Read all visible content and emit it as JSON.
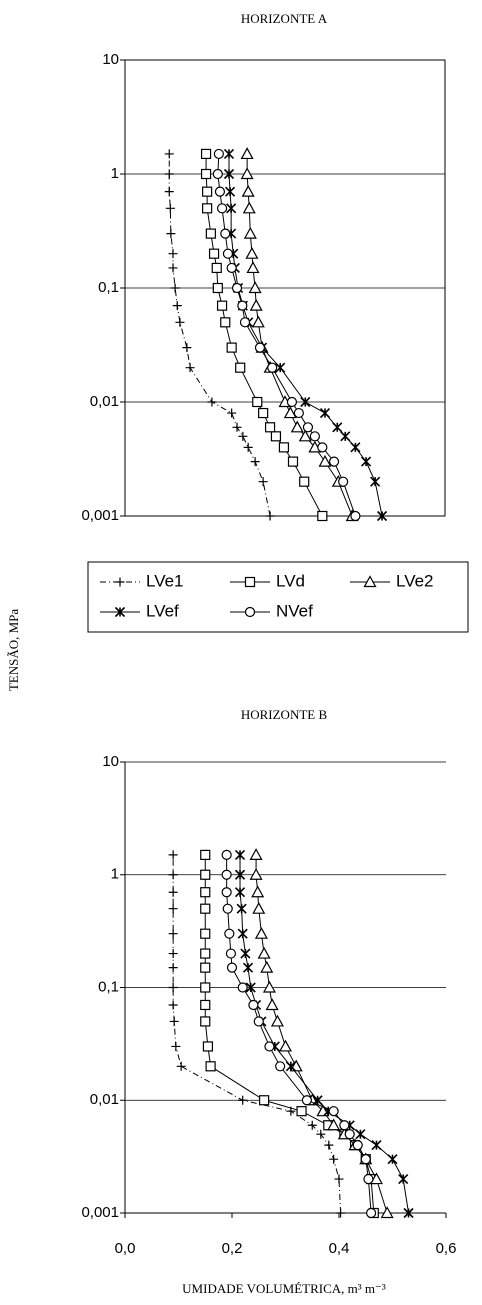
{
  "chart_data": [
    {
      "type": "line",
      "title": "HORIZONTE A",
      "ylabel": "TENSÃO, MPa",
      "log_y": true,
      "grid": true,
      "frame": true,
      "xlim": [
        0,
        0.6
      ],
      "ylim": [
        0.001,
        10
      ],
      "yticks": [
        10,
        1,
        {
          "value": 0.1,
          "label": "0,1"
        },
        {
          "value": 0.01,
          "label": "0,01"
        },
        {
          "value": 0.001,
          "label": "0,001"
        }
      ],
      "y": [
        0.001,
        0.002,
        0.003,
        0.004,
        0.005,
        0.006,
        0.008,
        0.01,
        0.02,
        0.03,
        0.05,
        0.07,
        0.1,
        0.15,
        0.2,
        0.3,
        0.5,
        0.7,
        1,
        1.5
      ],
      "series": [
        {
          "name": "LVe1",
          "color": "#000000",
          "marker": "plus",
          "dash": "dashdot",
          "x": [
            0.272,
            0.259,
            0.244,
            0.231,
            0.221,
            0.21,
            0.2,
            0.163,
            0.122,
            0.116,
            0.103,
            0.098,
            0.094,
            0.09,
            0.09,
            0.086,
            0.085,
            0.083,
            0.083,
            0.083
          ]
        },
        {
          "name": "LVd",
          "color": "#000000",
          "marker": "square",
          "dash": "solid",
          "x": [
            0.37,
            0.336,
            0.315,
            0.298,
            0.283,
            0.272,
            0.259,
            0.248,
            0.216,
            0.2,
            0.188,
            0.182,
            0.174,
            0.172,
            0.167,
            0.161,
            0.154,
            0.154,
            0.152,
            0.152
          ]
        },
        {
          "name": "LVe2",
          "color": "#000000",
          "marker": "triangle",
          "dash": "solid",
          "x": [
            0.426,
            0.4,
            0.375,
            0.356,
            0.338,
            0.323,
            0.31,
            0.3,
            0.272,
            0.257,
            0.25,
            0.246,
            0.244,
            0.24,
            0.238,
            0.235,
            0.233,
            0.231,
            0.229,
            0.229
          ]
        },
        {
          "name": "LVef",
          "color": "#000000",
          "marker": "star",
          "dash": "solid",
          "x": [
            0.482,
            0.469,
            0.452,
            0.432,
            0.413,
            0.398,
            0.375,
            0.338,
            0.291,
            0.257,
            0.231,
            0.221,
            0.212,
            0.206,
            0.203,
            0.199,
            0.199,
            0.197,
            0.195,
            0.195
          ]
        },
        {
          "name": "NVef",
          "color": "#000000",
          "marker": "circle",
          "dash": "solid",
          "x": [
            0.432,
            0.409,
            0.392,
            0.37,
            0.356,
            0.343,
            0.326,
            0.313,
            0.276,
            0.253,
            0.225,
            0.22,
            0.21,
            0.2,
            0.193,
            0.188,
            0.182,
            0.178,
            0.174,
            0.176
          ]
        }
      ]
    },
    {
      "type": "line",
      "title": "HORIZONTE B",
      "xlabel": "UMIDADE VOLUMÉTRICA, m³ m⁻³",
      "log_y": true,
      "grid": true,
      "frame": false,
      "xlim": [
        0,
        0.6
      ],
      "ylim": [
        0.001,
        10
      ],
      "xticks": [
        {
          "value": 0,
          "label": "0,0"
        },
        {
          "value": 0.2,
          "label": "0,2"
        },
        {
          "value": 0.4,
          "label": "0,4"
        },
        {
          "value": 0.6,
          "label": "0,6"
        }
      ],
      "yticks": [
        10,
        1,
        {
          "value": 0.1,
          "label": "0,1"
        },
        {
          "value": 0.01,
          "label": "0,01"
        },
        {
          "value": 0.001,
          "label": "0,001"
        }
      ],
      "y": [
        0.001,
        0.002,
        0.003,
        0.004,
        0.005,
        0.006,
        0.008,
        0.01,
        0.02,
        0.03,
        0.05,
        0.07,
        0.1,
        0.15,
        0.2,
        0.3,
        0.5,
        0.7,
        1,
        1.5
      ],
      "series": [
        {
          "color": "#000000",
          "marker": "plus",
          "dash": "dashdot",
          "x": [
            0.403,
            0.4,
            0.39,
            0.381,
            0.366,
            0.35,
            0.31,
            0.22,
            0.105,
            0.095,
            0.092,
            0.09,
            0.09,
            0.09,
            0.09,
            0.09,
            0.09,
            0.09,
            0.09,
            0.09
          ]
        },
        {
          "color": "#000000",
          "marker": "square",
          "dash": "solid",
          "x": [
            0.465,
            0.46,
            0.45,
            0.43,
            0.41,
            0.38,
            0.33,
            0.26,
            0.16,
            0.155,
            0.15,
            0.15,
            0.15,
            0.15,
            0.15,
            0.15,
            0.15,
            0.15,
            0.15,
            0.15
          ]
        },
        {
          "color": "#000000",
          "marker": "triangle",
          "dash": "solid",
          "x": [
            0.49,
            0.47,
            0.45,
            0.43,
            0.41,
            0.39,
            0.37,
            0.35,
            0.32,
            0.3,
            0.285,
            0.275,
            0.27,
            0.265,
            0.26,
            0.255,
            0.25,
            0.248,
            0.245,
            0.245
          ]
        },
        {
          "color": "#000000",
          "marker": "star",
          "dash": "solid",
          "x": [
            0.53,
            0.52,
            0.5,
            0.47,
            0.44,
            0.42,
            0.38,
            0.36,
            0.31,
            0.28,
            0.255,
            0.245,
            0.235,
            0.23,
            0.225,
            0.22,
            0.218,
            0.215,
            0.215,
            0.215
          ]
        },
        {
          "color": "#000000",
          "marker": "circle",
          "dash": "solid",
          "x": [
            0.46,
            0.455,
            0.45,
            0.435,
            0.42,
            0.41,
            0.39,
            0.34,
            0.29,
            0.27,
            0.25,
            0.24,
            0.22,
            0.2,
            0.198,
            0.195,
            0.192,
            0.19,
            0.19,
            0.19
          ]
        }
      ]
    }
  ]
}
